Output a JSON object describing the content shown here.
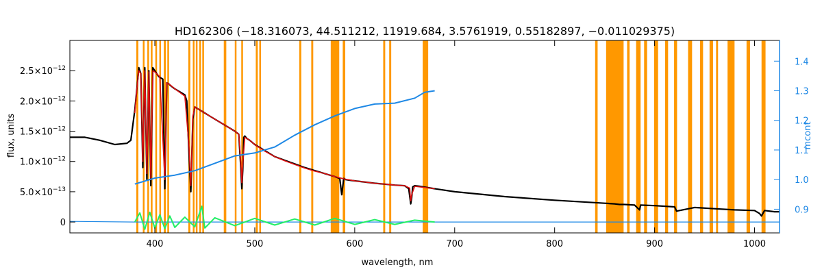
{
  "chart_data": {
    "type": "line",
    "title": "HD162306    (−18.316073, 44.511212, 11919.684, 3.5761919, 0.55182897, −0.011029375)",
    "xlabel": "wavelength, nm",
    "ylabel": "flux, units",
    "ylabel_right": "mcont",
    "xlim": [
      315,
      1025
    ],
    "ylim": [
      -1.8e-13,
      3e-12
    ],
    "ylim_right": [
      0.82,
      1.47
    ],
    "x_ticks": [
      400,
      500,
      600,
      700,
      800,
      900,
      1000
    ],
    "x_tick_labels": [
      "400",
      "500",
      "600",
      "700",
      "800",
      "900",
      "1000"
    ],
    "y_ticks": [
      0,
      5e-13,
      1e-12,
      1.5e-12,
      2e-12,
      2.5e-12
    ],
    "y_tick_labels": [
      {
        "mant": "0",
        "exp": ""
      },
      {
        "mant": "5.0×10",
        "exp": "−13"
      },
      {
        "mant": "1.0×10",
        "exp": "−12"
      },
      {
        "mant": "1.5×10",
        "exp": "−12"
      },
      {
        "mant": "2.0×10",
        "exp": "−12"
      },
      {
        "mant": "2.5×10",
        "exp": "−12"
      }
    ],
    "y_right_ticks": [
      0.9,
      1.0,
      1.1,
      1.2,
      1.3,
      1.4
    ],
    "y_right_tick_labels": [
      "0.9",
      "1.0",
      "1.1",
      "1.2",
      "1.3",
      "1.4"
    ],
    "grid": false,
    "colors": {
      "observed": "#000000",
      "model": "#e01010",
      "continuum": "#1e88e5",
      "residual": "#22ee66",
      "masks": "#ff9800",
      "right_axis": "#1e88e5"
    },
    "mask_bands": [
      [
        381.5,
        383.5
      ],
      [
        388.0,
        389.5
      ],
      [
        392.5,
        394.0
      ],
      [
        396.0,
        397.5
      ],
      [
        400.5,
        402.0
      ],
      [
        404.5,
        406.0
      ],
      [
        409.0,
        411.0
      ],
      [
        412.5,
        414.0
      ],
      [
        433.5,
        435.5
      ],
      [
        438.0,
        439.5
      ],
      [
        441.0,
        442.5
      ],
      [
        444.5,
        446.0
      ],
      [
        447.5,
        449.0
      ],
      [
        469.0,
        471.5
      ],
      [
        480.0,
        481.5
      ],
      [
        486.5,
        488.0
      ],
      [
        501.0,
        503.0
      ],
      [
        504.5,
        506.0
      ],
      [
        544.5,
        546.5
      ],
      [
        556.5,
        558.5
      ],
      [
        576.0,
        584.5
      ],
      [
        588.0,
        590.5
      ],
      [
        628.5,
        630.5
      ],
      [
        634.5,
        636.5
      ],
      [
        668.0,
        673.5
      ],
      [
        840.5,
        843.0
      ],
      [
        851.5,
        869.0
      ],
      [
        872.5,
        875.0
      ],
      [
        881.5,
        886.0
      ],
      [
        889.5,
        892.5
      ],
      [
        899.5,
        903.5
      ],
      [
        910.5,
        913.5
      ],
      [
        919.5,
        922.5
      ],
      [
        933.5,
        937.5
      ],
      [
        945.5,
        948.5
      ],
      [
        955.0,
        958.5
      ],
      [
        961.5,
        963.5
      ],
      [
        973.0,
        980.0
      ],
      [
        992.0,
        995.5
      ],
      [
        1007.0,
        1011.0
      ]
    ],
    "series": [
      {
        "key": "observed",
        "x": [
          315,
          330,
          345,
          360,
          372,
          376,
          378,
          380,
          382,
          384,
          386,
          388,
          390,
          392,
          394,
          396,
          398,
          400,
          402,
          404,
          406,
          408,
          410,
          412,
          414,
          416,
          420,
          425,
          430,
          432,
          434,
          436,
          438,
          440,
          445,
          450,
          455,
          460,
          465,
          470,
          475,
          480,
          484,
          486,
          487,
          488,
          489,
          490,
          492,
          495,
          500,
          510,
          520,
          530,
          540,
          550,
          560,
          570,
          580,
          585,
          587,
          589,
          591,
          595,
          600,
          620,
          640,
          650,
          654,
          656,
          657,
          658,
          660,
          665,
          680,
          700,
          750,
          800,
          850,
          860,
          865,
          866,
          870,
          880,
          885,
          886,
          900,
          920,
          922,
          940,
          960,
          980,
          1000,
          1005,
          1007,
          1010,
          1020,
          1025
        ],
        "y": [
          1.4e-12,
          1.4e-12,
          1.35e-12,
          1.28e-12,
          1.3e-12,
          1.35e-12,
          1.6e-12,
          1.85e-12,
          2.2e-12,
          2.55e-12,
          2.45e-12,
          9e-13,
          2.55e-12,
          7e-13,
          2.5e-12,
          6e-13,
          2.55e-12,
          2.5e-12,
          2.45e-12,
          2.4e-12,
          2.38e-12,
          2.36e-12,
          5.5e-13,
          2.3e-12,
          2.28e-12,
          2.25e-12,
          2.2e-12,
          2.15e-12,
          2.1e-12,
          2e-12,
          1.2e-12,
          5e-13,
          1.7e-12,
          1.9e-12,
          1.85e-12,
          1.8e-12,
          1.75e-12,
          1.7e-12,
          1.65e-12,
          1.6e-12,
          1.55e-12,
          1.5e-12,
          1.45e-12,
          9e-13,
          5.5e-13,
          8.5e-13,
          1.4e-12,
          1.42e-12,
          1.38e-12,
          1.35e-12,
          1.28e-12,
          1.18e-12,
          1.08e-12,
          1.02e-12,
          9.6e-13,
          9e-13,
          8.5e-13,
          8e-13,
          7.5e-13,
          7.2e-13,
          4.5e-13,
          7.2e-13,
          7e-13,
          6.9e-13,
          6.8e-13,
          6.4e-13,
          6.1e-13,
          6e-13,
          5.5e-13,
          3e-13,
          4e-13,
          5.8e-13,
          6e-13,
          5.9e-13,
          5.5e-13,
          5e-13,
          4.2e-13,
          3.6e-13,
          3.1e-13,
          3e-13,
          2.9e-13,
          2.9e-13,
          2.9e-13,
          2.8e-13,
          2e-13,
          2.8e-13,
          2.7e-13,
          2.5e-13,
          1.8e-13,
          2.4e-13,
          2.2e-13,
          2e-13,
          1.9e-13,
          1.4e-13,
          1e-13,
          1.9e-13,
          1.7e-13,
          1.7e-13
        ]
      },
      {
        "key": "model",
        "x": [
          380,
          382,
          384,
          386,
          388,
          390,
          392,
          394,
          396,
          398,
          400,
          405,
          410,
          412,
          415,
          420,
          425,
          430,
          434,
          436,
          438,
          440,
          450,
          460,
          470,
          480,
          484,
          486,
          487,
          488,
          490,
          495,
          500,
          510,
          520,
          530,
          540,
          550,
          560,
          570,
          580,
          590,
          600,
          620,
          640,
          650,
          655,
          656,
          657,
          660,
          670,
          680
        ],
        "y": [
          1.8e-12,
          2.2e-12,
          2.5e-12,
          2.45e-12,
          1e-12,
          2.5e-12,
          8e-13,
          2.48e-12,
          7e-13,
          2.5e-12,
          2.48e-12,
          2.4e-12,
          7e-13,
          2.3e-12,
          2.27e-12,
          2.2e-12,
          2.14e-12,
          2.08e-12,
          1.3e-12,
          6e-13,
          1.75e-12,
          1.9e-12,
          1.8e-12,
          1.7e-12,
          1.6e-12,
          1.5e-12,
          1.45e-12,
          1e-12,
          6.5e-13,
          9.5e-13,
          1.4e-12,
          1.35e-12,
          1.28e-12,
          1.17e-12,
          1.08e-12,
          1.01e-12,
          9.5e-13,
          8.9e-13,
          8.4e-13,
          8e-13,
          7.5e-13,
          7.1e-13,
          6.8e-13,
          6.4e-13,
          6.1e-13,
          6e-13,
          5.6e-13,
          3.5e-13,
          4.5e-13,
          5.9e-13,
          5.7e-13,
          5.5e-13
        ]
      },
      {
        "key": "continuum",
        "axis": "right",
        "x": [
          380,
          400,
          420,
          440,
          460,
          480,
          500,
          520,
          540,
          560,
          580,
          600,
          620,
          640,
          660,
          670,
          680
        ],
        "y": [
          0.985,
          1.005,
          1.015,
          1.03,
          1.055,
          1.08,
          1.09,
          1.11,
          1.15,
          1.185,
          1.215,
          1.24,
          1.255,
          1.258,
          1.275,
          1.295,
          1.3
        ]
      },
      {
        "key": "baseline",
        "x": [
          315,
          380,
          680,
          1025
        ],
        "y": [
          1e-14,
          0,
          0,
          0
        ]
      },
      {
        "key": "residual",
        "x": [
          380,
          385,
          390,
          395,
          400,
          405,
          410,
          415,
          420,
          430,
          440,
          447,
          450,
          460,
          480,
          500,
          520,
          540,
          560,
          580,
          600,
          620,
          640,
          660,
          680
        ],
        "y": [
          0,
          1.5e-13,
          -1.2e-13,
          1.6e-13,
          -1e-13,
          1.2e-13,
          -1.1e-13,
          1e-13,
          -9e-14,
          8e-14,
          -8e-14,
          2.6e-13,
          -1e-13,
          7e-14,
          -6e-14,
          6e-14,
          -5e-14,
          5e-14,
          -5e-14,
          6e-14,
          -4e-14,
          4e-14,
          -4e-14,
          3e-14,
          0
        ]
      }
    ]
  }
}
